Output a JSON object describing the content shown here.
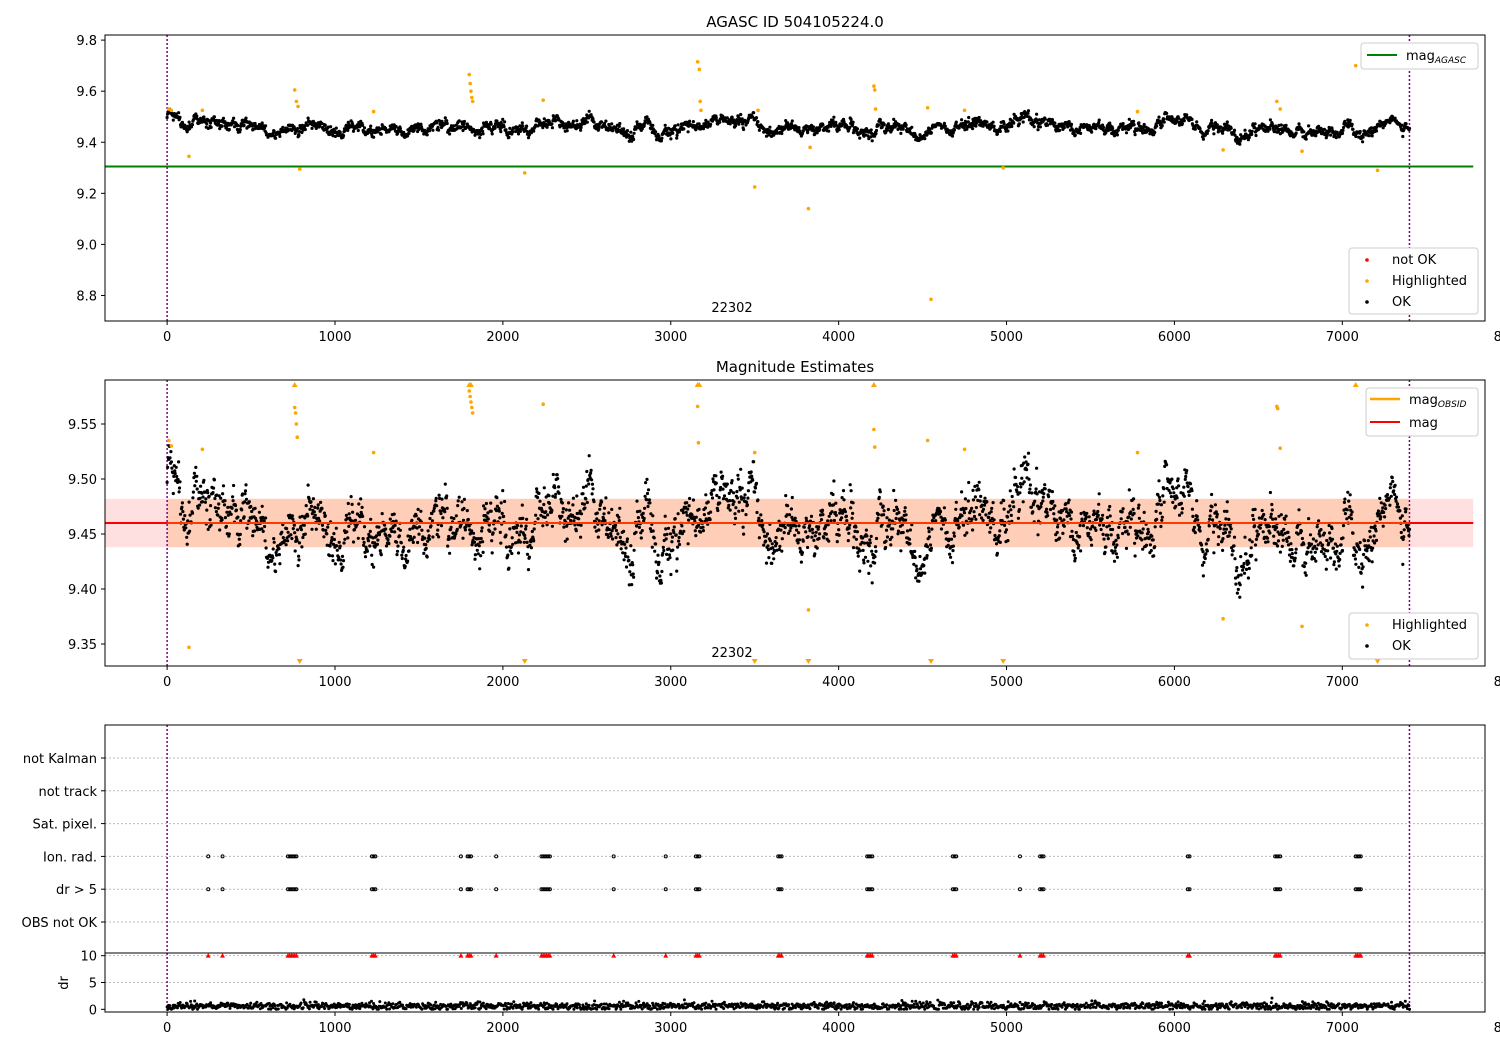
{
  "chart_data": [
    {
      "type": "scatter",
      "title": "AGASC ID 504105224.0",
      "xlim": [
        -370,
        7850
      ],
      "ylim": [
        8.7,
        9.82
      ],
      "xticks": [
        0,
        1000,
        2000,
        3000,
        4000,
        5000,
        6000,
        7000,
        8000
      ],
      "yticks": [
        8.8,
        9.0,
        9.2,
        9.4,
        9.6,
        9.8
      ],
      "ytick_labels": [
        "8.8",
        "9.0",
        "9.2",
        "9.4",
        "9.6",
        "9.8"
      ],
      "annotation": "22302",
      "vlines": [
        0,
        7400
      ],
      "hline": {
        "name": "mag_AGASC",
        "y": 9.305,
        "color": "#008000"
      },
      "legend_top": [
        "mag_AGASC"
      ],
      "legend_bottom": [
        {
          "label": "not OK",
          "color": "#ff0000"
        },
        {
          "label": "Highlighted",
          "color": "#ffa500"
        },
        {
          "label": "OK",
          "color": "#000000"
        }
      ],
      "series": [
        {
          "name": "OK",
          "color": "#000000",
          "x_range": [
            0,
            7400
          ],
          "baseline": 9.46,
          "profile_x": [
            0,
            100,
            300,
            600,
            1000,
            1400,
            1700,
            2100,
            2500,
            2900,
            3300,
            3700,
            4100,
            4500,
            4900,
            5300,
            5700,
            6100,
            6500,
            6900,
            7400
          ],
          "profile_y": [
            9.505,
            9.47,
            9.46,
            9.465,
            9.46,
            9.455,
            9.445,
            9.45,
            9.47,
            9.455,
            9.465,
            9.455,
            9.46,
            9.45,
            9.475,
            9.47,
            9.455,
            9.465,
            9.45,
            9.455,
            9.465
          ],
          "spread": 0.02
        },
        {
          "name": "Highlighted",
          "color": "#ffa500",
          "x": [
            10,
            25,
            130,
            210,
            760,
            770,
            780,
            790,
            1230,
            1800,
            1805,
            1810,
            1815,
            1820,
            2130,
            2240,
            3160,
            3170,
            3175,
            3180,
            3500,
            3520,
            3820,
            3830,
            4210,
            4215,
            4220,
            4530,
            4550,
            4750,
            4980,
            5780,
            6290,
            6610,
            6630,
            6760,
            7080,
            7210
          ],
          "y": [
            9.53,
            9.525,
            9.345,
            9.525,
            9.605,
            9.56,
            9.54,
            9.295,
            9.52,
            9.665,
            9.63,
            9.6,
            9.575,
            9.56,
            9.28,
            9.565,
            9.715,
            9.685,
            9.56,
            9.525,
            9.225,
            9.525,
            9.14,
            9.38,
            9.62,
            9.605,
            9.53,
            9.535,
            8.785,
            9.525,
            9.3,
            9.52,
            9.37,
            9.56,
            9.53,
            9.365,
            9.7,
            9.29
          ]
        }
      ]
    },
    {
      "type": "scatter",
      "title": "Magnitude Estimates",
      "xlim": [
        -370,
        7850
      ],
      "ylim": [
        9.33,
        9.59
      ],
      "xticks": [
        0,
        1000,
        2000,
        3000,
        4000,
        5000,
        6000,
        7000,
        8000
      ],
      "yticks": [
        9.35,
        9.4,
        9.45,
        9.5,
        9.55
      ],
      "ytick_labels": [
        "9.35",
        "9.40",
        "9.45",
        "9.50",
        "9.55"
      ],
      "annotation": "22302",
      "vlines": [
        0,
        7400
      ],
      "mean_line": {
        "name": "mag",
        "y": 9.46,
        "color": "#ff0000"
      },
      "band": {
        "lo": 9.438,
        "hi": 9.482,
        "color": "#ffcccc"
      },
      "obsid_band": {
        "lo": 9.438,
        "hi": 9.482,
        "x": [
          0,
          7400
        ],
        "color": "#ffb380"
      },
      "legend_top": [
        "mag_OBSID",
        "mag"
      ],
      "legend_bottom": [
        {
          "label": "Highlighted",
          "color": "#ffa500"
        },
        {
          "label": "OK",
          "color": "#000000"
        }
      ],
      "series": [
        {
          "name": "OK",
          "color": "#000000",
          "x_range": [
            0,
            7400
          ],
          "baseline": 9.46,
          "profile_x": [
            0,
            100,
            300,
            600,
            1000,
            1400,
            1700,
            2100,
            2500,
            2900,
            3300,
            3700,
            4100,
            4500,
            4900,
            5300,
            5700,
            6100,
            6500,
            6900,
            7400
          ],
          "profile_y": [
            9.505,
            9.47,
            9.46,
            9.465,
            9.46,
            9.455,
            9.445,
            9.45,
            9.47,
            9.455,
            9.465,
            9.455,
            9.46,
            9.45,
            9.475,
            9.47,
            9.455,
            9.465,
            9.45,
            9.455,
            9.465
          ],
          "spread": 0.02
        },
        {
          "name": "Highlighted",
          "color": "#ffa500",
          "x": [
            10,
            25,
            130,
            210,
            760,
            765,
            770,
            775,
            1230,
            1800,
            1805,
            1810,
            1815,
            1820,
            2240,
            3160,
            3165,
            3500,
            3820,
            4210,
            4215,
            4530,
            4750,
            5780,
            6290,
            6610,
            6615,
            6630,
            6760
          ],
          "y": [
            9.535,
            9.53,
            9.347,
            9.527,
            9.565,
            9.56,
            9.55,
            9.538,
            9.524,
            9.58,
            9.575,
            9.57,
            9.565,
            9.56,
            9.568,
            9.566,
            9.533,
            9.524,
            9.381,
            9.545,
            9.529,
            9.535,
            9.527,
            9.524,
            9.373,
            9.566,
            9.564,
            9.528,
            9.366
          ]
        },
        {
          "name": "Highlighted (clipped)",
          "color": "#ffa500",
          "up_x": [
            760,
            1800,
            1810,
            3160,
            3170,
            4210,
            7080
          ],
          "down_x": [
            790,
            2130,
            3500,
            3820,
            4550,
            4980,
            7210
          ]
        }
      ]
    },
    {
      "type": "scatter",
      "title": "",
      "xlim": [
        -370,
        7850
      ],
      "xticks": [
        0,
        1000,
        2000,
        3000,
        4000,
        5000,
        6000,
        7000,
        8000
      ],
      "vlines": [
        0,
        7400
      ],
      "flag_rows": [
        "not Kalman",
        "not track",
        "Sat. pixel.",
        "Ion. rad.",
        "dr > 5",
        "OBS not OK"
      ],
      "flag_x": [
        245,
        330,
        720,
        730,
        740,
        750,
        760,
        770,
        1220,
        1230,
        1240,
        1750,
        1790,
        1800,
        1810,
        1960,
        2230,
        2240,
        2250,
        2260,
        2270,
        2280,
        2660,
        2970,
        3150,
        3160,
        3170,
        3640,
        3650,
        3660,
        4170,
        4180,
        4190,
        4200,
        4680,
        4690,
        4700,
        5080,
        5200,
        5210,
        5220,
        6080,
        6090,
        6600,
        6610,
        6620,
        6630,
        7080,
        7090,
        7100,
        7110
      ],
      "flagged_rows": [
        "Ion. rad.",
        "dr > 5"
      ],
      "dr": {
        "ylabel": "dr",
        "yticks": [
          0,
          5,
          10
        ],
        "ytick_labels": [
          "0",
          "5",
          "10"
        ],
        "ylim": [
          -0.5,
          10.5
        ],
        "x_range": [
          0,
          7400
        ],
        "typical": 0.6,
        "capped_value": 10,
        "capped_color": "#ff0000"
      }
    }
  ]
}
